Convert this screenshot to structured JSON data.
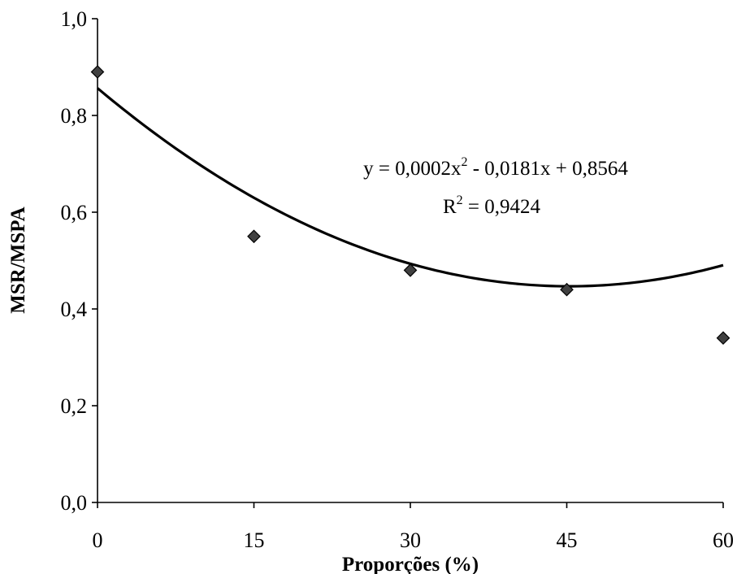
{
  "chart_data": {
    "type": "scatter",
    "xlabel": "Proporções (%)",
    "ylabel": "MSR/MSPA",
    "xlim": [
      0,
      60
    ],
    "ylim": [
      0,
      1.0
    ],
    "x_ticks": [
      "0",
      "15",
      "30",
      "45",
      "60"
    ],
    "x_tick_values": [
      0,
      15,
      30,
      45,
      60
    ],
    "y_ticks": [
      "0,0",
      "0,2",
      "0,4",
      "0,6",
      "0,8",
      "1,0"
    ],
    "y_tick_values": [
      0,
      0.2,
      0.4,
      0.6,
      0.8,
      1.0
    ],
    "grid": false,
    "legend": "none",
    "series": [
      {
        "marker": "diamond",
        "color": "#404040",
        "x": [
          0,
          15,
          30,
          45,
          60
        ],
        "y": [
          0.89,
          0.55,
          0.48,
          0.44,
          0.34
        ]
      }
    ],
    "trendline": {
      "type": "polynomial",
      "coefficients": [
        0.0002,
        -0.0181,
        0.8564
      ],
      "color": "#000000"
    },
    "annotations": {
      "equation_prefix": "y = 0,0002x",
      "equation_exp": "2",
      "equation_suffix": " - 0,0181x + 0,8564",
      "r2_prefix": "R",
      "r2_exp": "2",
      "r2_suffix": " = 0,9424"
    }
  }
}
